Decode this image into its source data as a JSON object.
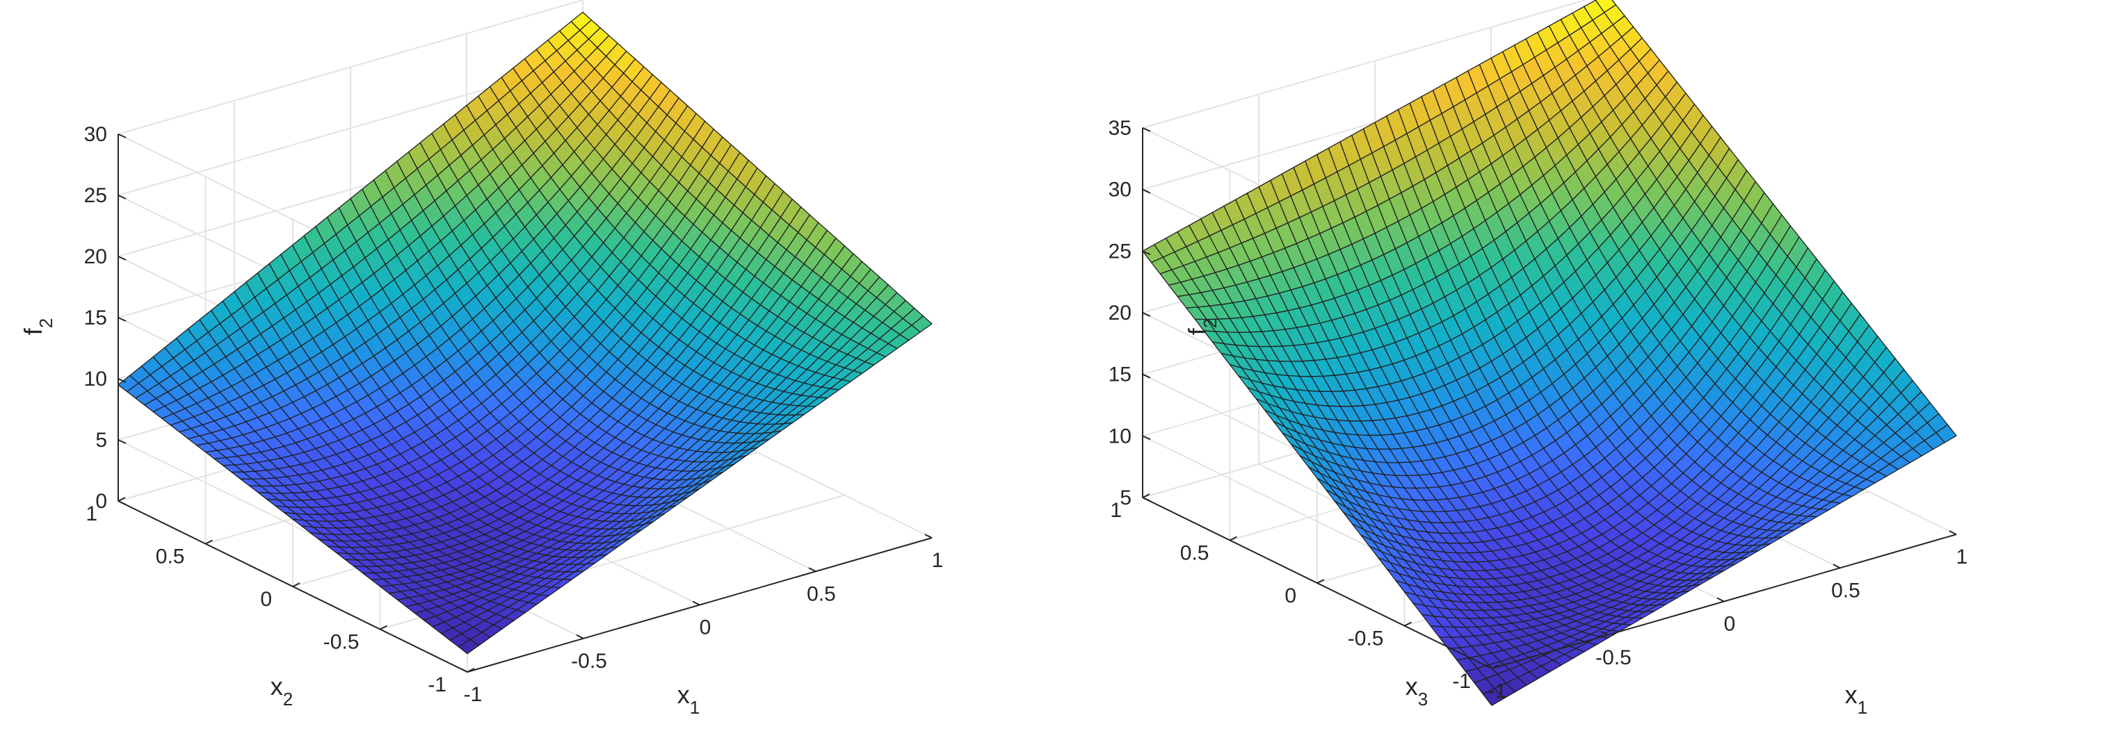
{
  "chart_data": [
    {
      "type": "surface",
      "xlabel": "x",
      "xlabel_sub": "1",
      "ylabel": "x",
      "ylabel_sub": "2",
      "zlabel": "f",
      "zlabel_sub": "2",
      "xlim": [
        -1,
        1
      ],
      "ylim": [
        -1,
        1
      ],
      "zlim": [
        0,
        30
      ],
      "xticks": [
        "-1",
        "-0.5",
        "0",
        "0.5",
        "1"
      ],
      "yticks": [
        "-1",
        "-0.5",
        "0",
        "0.5",
        "1"
      ],
      "zticks": [
        "0",
        "5",
        "10",
        "15",
        "20",
        "25",
        "30"
      ],
      "grid": true,
      "colormap": "parula",
      "colormap_colors": [
        "#3e26a8",
        "#4744e8",
        "#3a72fd",
        "#1d96e3",
        "#13b1c8",
        "#2cc097",
        "#7bc65c",
        "#c8c036",
        "#f6c32f",
        "#f9fa14"
      ],
      "grid_resolution": 40,
      "corner_values": {
        "x_-1_y_-1": 1.5,
        "x_1_y_-1": 17.5,
        "x_-1_y_1": 9.5,
        "x_1_y_1": 29.0
      },
      "center_value": 6.0,
      "color_range": [
        1.5,
        29.0
      ]
    },
    {
      "type": "surface",
      "xlabel": "x",
      "xlabel_sub": "1",
      "ylabel": "x",
      "ylabel_sub": "3",
      "zlabel": "f",
      "zlabel_sub": "2",
      "xlim": [
        -1,
        1
      ],
      "ylim": [
        -1,
        1
      ],
      "zlim": [
        5,
        35
      ],
      "xticks": [
        "-1",
        "-0.5",
        "0",
        "0.5",
        "1"
      ],
      "yticks": [
        "-1",
        "-0.5",
        "0",
        "0.5",
        "1"
      ],
      "zticks": [
        "5",
        "10",
        "15",
        "20",
        "25",
        "30",
        "35"
      ],
      "grid": true,
      "colormap": "parula",
      "colormap_colors": [
        "#3e26a8",
        "#4744e8",
        "#3a72fd",
        "#1d96e3",
        "#13b1c8",
        "#2cc097",
        "#7bc65c",
        "#c8c036",
        "#f6c32f",
        "#f9fa14"
      ],
      "grid_resolution": 40,
      "corner_values": {
        "x_-1_y_-1": 2.0,
        "x_1_y_-1": 13.0,
        "x_-1_y_1": 25.0,
        "x_1_y_1": 35.0
      },
      "center_value": 8.0,
      "color_range": [
        2.0,
        35.0
      ]
    }
  ]
}
